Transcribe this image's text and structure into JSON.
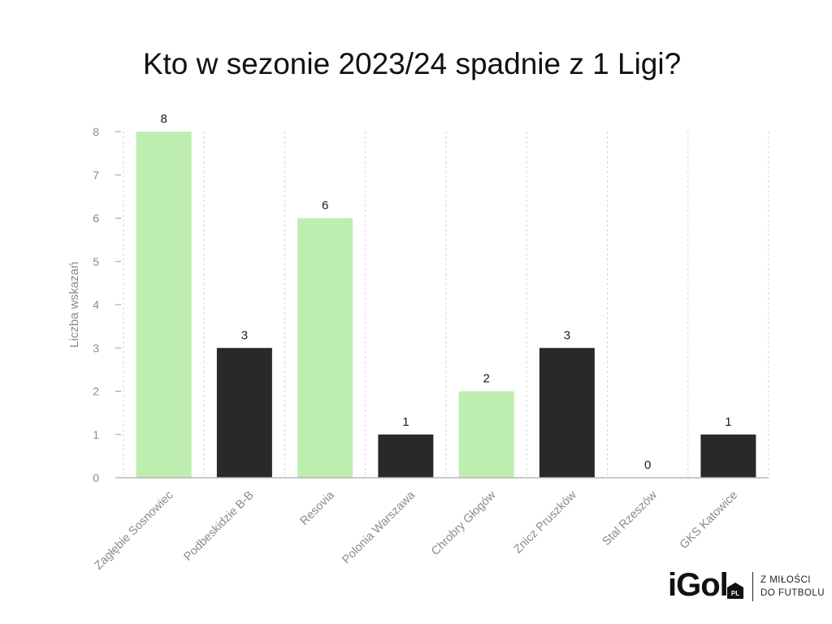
{
  "chart_data": {
    "type": "bar",
    "title": "Kto w sezonie 2023/24 spadnie z 1 Ligi?",
    "ylabel": "Liczba wskazań",
    "xlabel": "",
    "ylim": [
      0,
      8
    ],
    "yticks": [
      0,
      1,
      2,
      3,
      4,
      5,
      6,
      7,
      8
    ],
    "categories": [
      "Zagłębie Sosnowiec",
      "Podbeskidzie B-B",
      "Resovia",
      "Polonia Warszawa",
      "Chrobry Głogów",
      "Znicz Pruszków",
      "Stal Rzeszów",
      "GKS Katowice"
    ],
    "values": [
      8,
      3,
      6,
      1,
      2,
      3,
      0,
      1
    ],
    "bar_colors": [
      "#bdeeb0",
      "#272a27",
      "#bdeeb0",
      "#272a27",
      "#bdeeb0",
      "#272a27",
      "#272a27",
      "#272a27"
    ],
    "grid": "vertical dashed",
    "data_labels": true
  },
  "logo": {
    "text": "iGol",
    "badge": "PL",
    "tagline_line1": "Z MIŁOŚCI",
    "tagline_line2": "DO FUTBOLU"
  }
}
